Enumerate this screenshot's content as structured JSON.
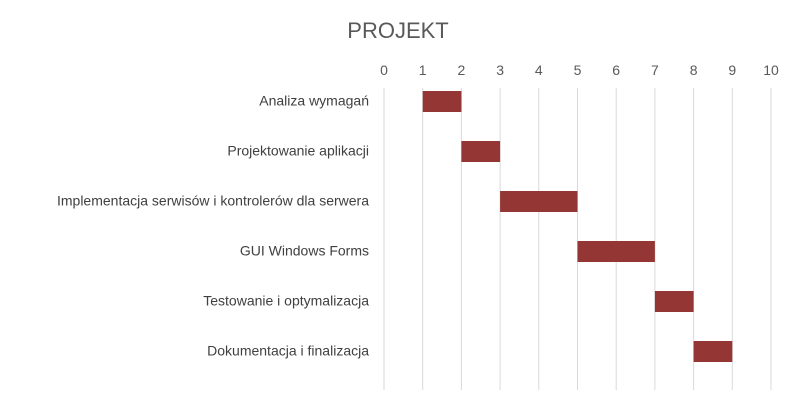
{
  "chart_data": {
    "type": "bar",
    "orientation": "horizontal-gantt",
    "title": "PROJEKT",
    "xlabel": "",
    "ylabel": "",
    "xlim": [
      0,
      10
    ],
    "x_ticks": [
      "0",
      "1",
      "2",
      "3",
      "4",
      "5",
      "6",
      "7",
      "8",
      "9",
      "10"
    ],
    "x_axis_position": "top",
    "grid": true,
    "legend": "none",
    "categories": [
      "Analiza wymagań",
      "Projektowanie aplikacji",
      "Implementacja serwisów i kontrolerów dla serwera",
      "GUI Windows Forms",
      "Testowanie i optymalizacja",
      "Dokumentacja i finalizacja"
    ],
    "series": [
      {
        "values": [
          1,
          2,
          3,
          5,
          7,
          8
        ],
        "role": "start",
        "visible": false
      },
      {
        "values": [
          1,
          1,
          2,
          2,
          1,
          1
        ],
        "role": "duration",
        "color": "#943634"
      }
    ]
  }
}
